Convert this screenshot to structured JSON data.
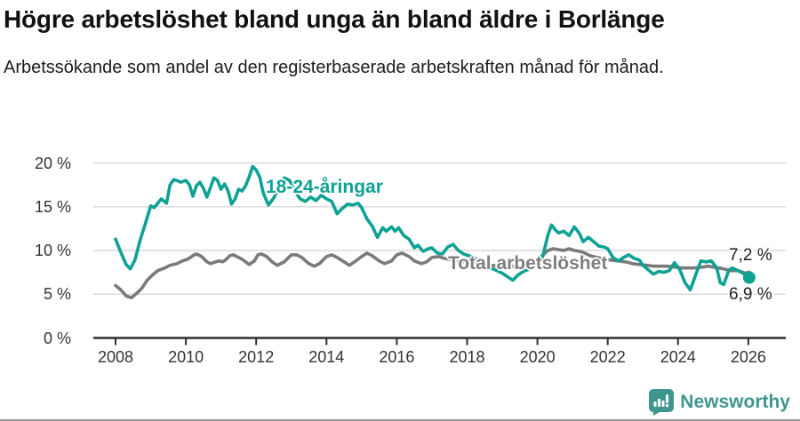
{
  "chart_data": {
    "type": "line",
    "title": "Högre arbetslöshet bland unga än bland äldre i Borlänge",
    "subtitle": "Arbetssökande som andel av den registerbaserade arbetskraften månad för månad.",
    "unit": "%",
    "grid": "horizontal",
    "legend_position": "inline-labels",
    "ylim": [
      0,
      20
    ],
    "xlim": [
      2007.4,
      2027.1
    ],
    "y_ticks": [
      {
        "value": 0,
        "label": "0 %"
      },
      {
        "value": 5,
        "label": "5 %"
      },
      {
        "value": 10,
        "label": "10 %"
      },
      {
        "value": 15,
        "label": "15 %"
      },
      {
        "value": 20,
        "label": "20 %"
      }
    ],
    "x_ticks": [
      {
        "value": 2008,
        "label": "2008"
      },
      {
        "value": 2010,
        "label": "2010"
      },
      {
        "value": 2012,
        "label": "2012"
      },
      {
        "value": 2014,
        "label": "2014"
      },
      {
        "value": 2016,
        "label": "2016"
      },
      {
        "value": 2018,
        "label": "2018"
      },
      {
        "value": 2020,
        "label": "2020"
      },
      {
        "value": 2022,
        "label": "2022"
      },
      {
        "value": 2024,
        "label": "2024"
      },
      {
        "value": 2026,
        "label": "2026"
      }
    ],
    "colors": {
      "youth_line": "#0ea294",
      "total_line": "#7a7a7a",
      "gridline": "#d9d9d9",
      "axis": "#2e2e2e",
      "tick_text": "#333333"
    },
    "series": [
      {
        "name": "18-24-åringar",
        "color": "#0ea294",
        "end_label": "6,9 %",
        "end_value": 6.9,
        "end_marker": true,
        "points": [
          [
            2008.0,
            11.3
          ],
          [
            2008.15,
            9.8
          ],
          [
            2008.3,
            8.4
          ],
          [
            2008.42,
            7.9
          ],
          [
            2008.55,
            8.9
          ],
          [
            2008.7,
            11.2
          ],
          [
            2008.85,
            13.1
          ],
          [
            2009.0,
            15.1
          ],
          [
            2009.1,
            14.9
          ],
          [
            2009.2,
            15.4
          ],
          [
            2009.3,
            15.9
          ],
          [
            2009.45,
            15.4
          ],
          [
            2009.55,
            17.5
          ],
          [
            2009.65,
            18.1
          ],
          [
            2009.75,
            18.0
          ],
          [
            2009.85,
            17.8
          ],
          [
            2010.0,
            18.0
          ],
          [
            2010.1,
            17.5
          ],
          [
            2010.2,
            16.2
          ],
          [
            2010.3,
            17.4
          ],
          [
            2010.4,
            17.8
          ],
          [
            2010.5,
            17.1
          ],
          [
            2010.6,
            16.1
          ],
          [
            2010.7,
            17.2
          ],
          [
            2010.8,
            18.3
          ],
          [
            2010.9,
            18.0
          ],
          [
            2011.0,
            17.0
          ],
          [
            2011.1,
            17.6
          ],
          [
            2011.2,
            16.8
          ],
          [
            2011.3,
            15.3
          ],
          [
            2011.4,
            15.9
          ],
          [
            2011.5,
            17.0
          ],
          [
            2011.6,
            16.8
          ],
          [
            2011.7,
            17.4
          ],
          [
            2011.8,
            18.4
          ],
          [
            2011.9,
            19.6
          ],
          [
            2012.0,
            19.2
          ],
          [
            2012.1,
            18.4
          ],
          [
            2012.2,
            16.6
          ],
          [
            2012.35,
            15.2
          ],
          [
            2012.5,
            16.0
          ],
          [
            2012.65,
            17.2
          ],
          [
            2012.8,
            18.3
          ],
          [
            2012.95,
            18.0
          ],
          [
            2013.1,
            16.8
          ],
          [
            2013.25,
            15.9
          ],
          [
            2013.4,
            15.6
          ],
          [
            2013.55,
            16.1
          ],
          [
            2013.7,
            15.7
          ],
          [
            2013.85,
            16.3
          ],
          [
            2014.0,
            15.9
          ],
          [
            2014.15,
            15.6
          ],
          [
            2014.3,
            14.2
          ],
          [
            2014.45,
            14.8
          ],
          [
            2014.6,
            15.3
          ],
          [
            2014.75,
            15.2
          ],
          [
            2014.9,
            15.4
          ],
          [
            2015.0,
            14.9
          ],
          [
            2015.15,
            13.6
          ],
          [
            2015.3,
            12.8
          ],
          [
            2015.45,
            11.5
          ],
          [
            2015.6,
            12.6
          ],
          [
            2015.7,
            12.2
          ],
          [
            2015.85,
            12.7
          ],
          [
            2015.95,
            12.2
          ],
          [
            2016.05,
            12.6
          ],
          [
            2016.2,
            11.7
          ],
          [
            2016.35,
            11.3
          ],
          [
            2016.5,
            10.3
          ],
          [
            2016.6,
            10.6
          ],
          [
            2016.75,
            9.9
          ],
          [
            2016.9,
            10.2
          ],
          [
            2017.0,
            10.3
          ],
          [
            2017.15,
            9.7
          ],
          [
            2017.3,
            9.6
          ],
          [
            2017.45,
            10.4
          ],
          [
            2017.6,
            10.7
          ],
          [
            2017.75,
            10.0
          ],
          [
            2017.9,
            9.6
          ],
          [
            2018.05,
            9.4
          ],
          [
            2018.2,
            9.2
          ],
          [
            2018.4,
            8.6
          ],
          [
            2018.6,
            8.1
          ],
          [
            2018.8,
            7.8
          ],
          [
            2019.0,
            7.4
          ],
          [
            2019.15,
            7.0
          ],
          [
            2019.3,
            6.6
          ],
          [
            2019.45,
            7.2
          ],
          [
            2019.6,
            7.6
          ],
          [
            2019.8,
            7.9
          ],
          [
            2020.0,
            8.4
          ],
          [
            2020.15,
            9.3
          ],
          [
            2020.3,
            11.8
          ],
          [
            2020.4,
            12.9
          ],
          [
            2020.5,
            12.4
          ],
          [
            2020.6,
            12.0
          ],
          [
            2020.75,
            12.2
          ],
          [
            2020.9,
            11.7
          ],
          [
            2021.05,
            12.7
          ],
          [
            2021.2,
            11.9
          ],
          [
            2021.3,
            11.0
          ],
          [
            2021.45,
            11.5
          ],
          [
            2021.6,
            11.0
          ],
          [
            2021.75,
            10.5
          ],
          [
            2021.9,
            10.4
          ],
          [
            2022.0,
            10.2
          ],
          [
            2022.15,
            9.2
          ],
          [
            2022.3,
            8.8
          ],
          [
            2022.45,
            9.2
          ],
          [
            2022.6,
            9.5
          ],
          [
            2022.75,
            9.1
          ],
          [
            2022.9,
            8.9
          ],
          [
            2023.0,
            8.3
          ],
          [
            2023.15,
            7.8
          ],
          [
            2023.3,
            7.3
          ],
          [
            2023.45,
            7.6
          ],
          [
            2023.6,
            7.5
          ],
          [
            2023.75,
            7.7
          ],
          [
            2023.9,
            8.6
          ],
          [
            2024.05,
            7.8
          ],
          [
            2024.2,
            6.3
          ],
          [
            2024.35,
            5.5
          ],
          [
            2024.5,
            7.2
          ],
          [
            2024.65,
            8.8
          ],
          [
            2024.8,
            8.7
          ],
          [
            2024.95,
            8.8
          ],
          [
            2025.1,
            8.0
          ],
          [
            2025.2,
            6.3
          ],
          [
            2025.3,
            6.1
          ],
          [
            2025.45,
            7.8
          ],
          [
            2025.55,
            8.0
          ],
          [
            2025.7,
            7.7
          ],
          [
            2025.85,
            7.4
          ],
          [
            2026.0,
            6.9
          ]
        ]
      },
      {
        "name": "Total arbetslöshet",
        "color": "#7a7a7a",
        "end_label": "7,2 %",
        "end_value": 7.2,
        "end_marker": true,
        "points": [
          [
            2008.0,
            6.0
          ],
          [
            2008.15,
            5.5
          ],
          [
            2008.3,
            4.8
          ],
          [
            2008.45,
            4.6
          ],
          [
            2008.6,
            5.1
          ],
          [
            2008.75,
            5.7
          ],
          [
            2008.9,
            6.6
          ],
          [
            2009.05,
            7.2
          ],
          [
            2009.2,
            7.7
          ],
          [
            2009.4,
            8.0
          ],
          [
            2009.55,
            8.3
          ],
          [
            2009.75,
            8.5
          ],
          [
            2009.9,
            8.8
          ],
          [
            2010.05,
            9.0
          ],
          [
            2010.2,
            9.4
          ],
          [
            2010.3,
            9.6
          ],
          [
            2010.45,
            9.3
          ],
          [
            2010.6,
            8.7
          ],
          [
            2010.7,
            8.5
          ],
          [
            2010.85,
            8.7
          ],
          [
            2010.95,
            8.8
          ],
          [
            2011.05,
            8.7
          ],
          [
            2011.15,
            9.0
          ],
          [
            2011.25,
            9.4
          ],
          [
            2011.35,
            9.5
          ],
          [
            2011.45,
            9.3
          ],
          [
            2011.6,
            9.0
          ],
          [
            2011.7,
            8.7
          ],
          [
            2011.8,
            8.4
          ],
          [
            2011.95,
            8.8
          ],
          [
            2012.05,
            9.5
          ],
          [
            2012.15,
            9.6
          ],
          [
            2012.3,
            9.3
          ],
          [
            2012.45,
            8.7
          ],
          [
            2012.6,
            8.3
          ],
          [
            2012.8,
            8.7
          ],
          [
            2013.0,
            9.5
          ],
          [
            2013.15,
            9.5
          ],
          [
            2013.3,
            9.2
          ],
          [
            2013.5,
            8.5
          ],
          [
            2013.65,
            8.2
          ],
          [
            2013.8,
            8.5
          ],
          [
            2014.0,
            9.3
          ],
          [
            2014.15,
            9.5
          ],
          [
            2014.3,
            9.2
          ],
          [
            2014.5,
            8.7
          ],
          [
            2014.65,
            8.3
          ],
          [
            2014.8,
            8.7
          ],
          [
            2015.0,
            9.3
          ],
          [
            2015.15,
            9.7
          ],
          [
            2015.3,
            9.4
          ],
          [
            2015.5,
            8.8
          ],
          [
            2015.65,
            8.5
          ],
          [
            2015.85,
            8.8
          ],
          [
            2016.0,
            9.5
          ],
          [
            2016.15,
            9.7
          ],
          [
            2016.35,
            9.3
          ],
          [
            2016.5,
            8.8
          ],
          [
            2016.7,
            8.5
          ],
          [
            2016.85,
            8.7
          ],
          [
            2017.0,
            9.2
          ],
          [
            2017.2,
            9.3
          ],
          [
            2017.35,
            9.1
          ],
          [
            2017.5,
            9.0
          ],
          [
            2017.7,
            8.8
          ],
          [
            2017.9,
            8.7
          ],
          [
            2018.1,
            8.8
          ],
          [
            2018.3,
            8.6
          ],
          [
            2018.5,
            8.4
          ],
          [
            2018.7,
            8.3
          ],
          [
            2018.9,
            8.2
          ],
          [
            2019.1,
            8.3
          ],
          [
            2019.3,
            8.2
          ],
          [
            2019.5,
            8.1
          ],
          [
            2019.7,
            8.2
          ],
          [
            2019.9,
            8.5
          ],
          [
            2020.1,
            9.3
          ],
          [
            2020.3,
            10.0
          ],
          [
            2020.45,
            10.2
          ],
          [
            2020.6,
            10.1
          ],
          [
            2020.75,
            10.0
          ],
          [
            2020.9,
            10.2
          ],
          [
            2021.05,
            10.0
          ],
          [
            2021.2,
            9.9
          ],
          [
            2021.35,
            9.7
          ],
          [
            2021.5,
            9.4
          ],
          [
            2021.7,
            9.2
          ],
          [
            2021.9,
            9.0
          ],
          [
            2022.1,
            8.9
          ],
          [
            2022.3,
            8.8
          ],
          [
            2022.5,
            8.7
          ],
          [
            2022.7,
            8.5
          ],
          [
            2022.9,
            8.4
          ],
          [
            2023.1,
            8.3
          ],
          [
            2023.3,
            8.2
          ],
          [
            2023.5,
            8.2
          ],
          [
            2023.7,
            8.2
          ],
          [
            2023.9,
            8.1
          ],
          [
            2024.1,
            8.0
          ],
          [
            2024.3,
            8.0
          ],
          [
            2024.5,
            8.0
          ],
          [
            2024.7,
            8.1
          ],
          [
            2024.85,
            8.2
          ],
          [
            2025.0,
            8.1
          ],
          [
            2025.15,
            8.0
          ],
          [
            2025.3,
            7.9
          ],
          [
            2025.5,
            7.7
          ],
          [
            2025.7,
            7.7
          ],
          [
            2025.85,
            7.5
          ],
          [
            2026.0,
            7.2
          ]
        ]
      }
    ]
  },
  "branding": {
    "logo_text": "Newsworthy",
    "logo_color": "#3f968e"
  }
}
